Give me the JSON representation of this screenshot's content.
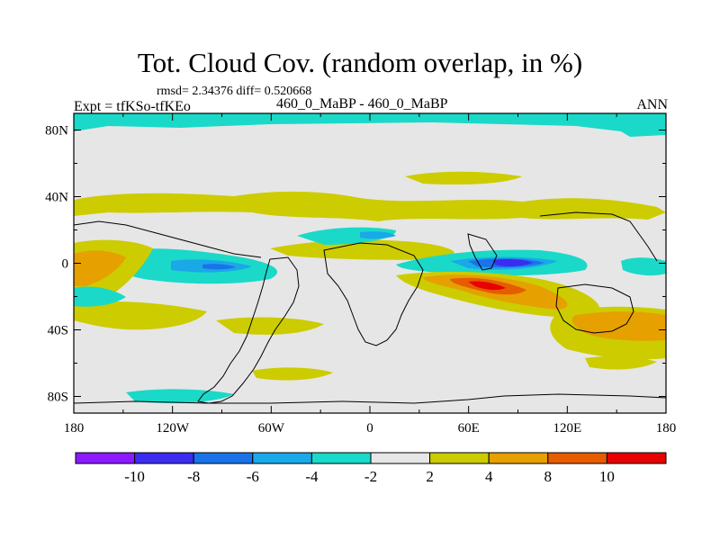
{
  "title": "Tot. Cloud Cov. (random overlap, in %)",
  "stats_line": "rmsd= 2.34376 diff= 0.520668",
  "experiment": "Expt = tfKSo-tfKEo",
  "comparison": "460_0_MaBP - 460_0_MaBP",
  "season": "ANN",
  "chart_data": {
    "type": "heatmap",
    "title": "Tot. Cloud Cov. (random overlap, in %)",
    "variable": "Total cloud cover difference (%)",
    "xlabel": "",
    "ylabel": "",
    "xlim": [
      -180,
      180
    ],
    "ylim": [
      -90,
      90
    ],
    "x_ticks": [
      -180,
      -120,
      -60,
      0,
      60,
      120,
      180
    ],
    "x_tick_labels": [
      "180",
      "120W",
      "60W",
      "0",
      "60E",
      "120E",
      "180"
    ],
    "y_ticks": [
      80,
      40,
      0,
      -40,
      -80
    ],
    "y_tick_labels": [
      "80N",
      "40N",
      "0",
      "40S",
      "80S"
    ],
    "colorbar": {
      "levels": [
        -10,
        -8,
        -6,
        -4,
        -2,
        2,
        4,
        8,
        10
      ],
      "labels": [
        "-10",
        "-8",
        "-6",
        "-4",
        "-2",
        "2",
        "4",
        "8",
        "10"
      ],
      "colors": [
        "#8c1aff",
        "#3c2cf0",
        "#1a73e8",
        "#1aa8e8",
        "#1ad9c8",
        "#e6e6e6",
        "#cccc00",
        "#e6a000",
        "#e65c00",
        "#e60000"
      ]
    },
    "features": [
      {
        "region": "Arctic band ~80-90N",
        "sign": "negative",
        "range": "-2 to -4"
      },
      {
        "region": "Eastern equatorial Indian/Pacific ~0-10S, 60E-110E",
        "sign": "negative",
        "range": "-8 to -10"
      },
      {
        "region": "Southern Indian Ocean ~5-35S, 30E-110E",
        "sign": "positive",
        "range": "8 to 10"
      },
      {
        "region": "Southern subtropical Pacific ~30-50S, 120E-180",
        "sign": "positive",
        "range": "4 to 8"
      },
      {
        "region": "Eastern Pacific ~0-20S, 180-100W",
        "sign": "positive",
        "range": "4 to 8"
      },
      {
        "region": "Equatorial Pacific ~0, 160W-50W",
        "sign": "negative",
        "range": "-2 to -6"
      },
      {
        "region": "Northern midlatitudes ~30-45N",
        "sign": "positive",
        "range": "2 to 4"
      },
      {
        "region": "Southern Ocean ~50-60S",
        "sign": "positive",
        "range": "2 to 4"
      }
    ]
  }
}
